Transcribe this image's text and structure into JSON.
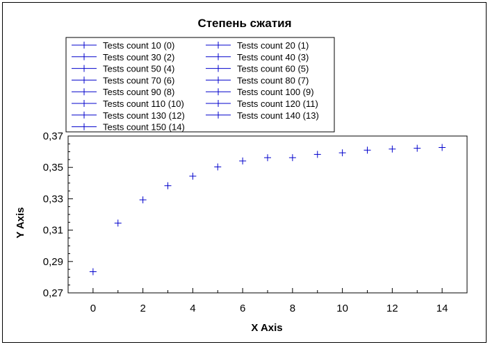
{
  "chart_data": {
    "type": "scatter",
    "title": "Степень сжатия",
    "xlabel": "X Axis",
    "ylabel": "Y Axis",
    "xlim": [
      -1,
      15
    ],
    "ylim": [
      0.27,
      0.37
    ],
    "x_ticks": [
      0,
      2,
      4,
      6,
      8,
      10,
      12,
      14
    ],
    "x_tick_labels": [
      "0",
      "2",
      "4",
      "6",
      "8",
      "10",
      "12",
      "14"
    ],
    "y_ticks": [
      0.27,
      0.29,
      0.31,
      0.33,
      0.35,
      0.37
    ],
    "y_tick_labels": [
      "0,27",
      "0,29",
      "0,31",
      "0,33",
      "0,35",
      "0,37"
    ],
    "marker_color": "#0000cc",
    "legend_position": "top",
    "series": [
      {
        "name": "Tests count 10 (0)",
        "x": [
          0
        ],
        "y": [
          0.2835
        ]
      },
      {
        "name": "Tests count 20 (1)",
        "x": [
          1
        ],
        "y": [
          0.3145
        ]
      },
      {
        "name": "Tests count 30 (2)",
        "x": [
          2
        ],
        "y": [
          0.3293
        ]
      },
      {
        "name": "Tests count 40 (3)",
        "x": [
          3
        ],
        "y": [
          0.3383
        ]
      },
      {
        "name": "Tests count 50 (4)",
        "x": [
          4
        ],
        "y": [
          0.3444
        ]
      },
      {
        "name": "Tests count 60 (5)",
        "x": [
          5
        ],
        "y": [
          0.3503
        ]
      },
      {
        "name": "Tests count 70 (6)",
        "x": [
          6
        ],
        "y": [
          0.3541
        ]
      },
      {
        "name": "Tests count 80 (7)",
        "x": [
          7
        ],
        "y": [
          0.3562
        ]
      },
      {
        "name": "Tests count 90 (8)",
        "x": [
          8
        ],
        "y": [
          0.3562
        ]
      },
      {
        "name": "Tests count 100 (9)",
        "x": [
          9
        ],
        "y": [
          0.3583
        ]
      },
      {
        "name": "Tests count 110 (10)",
        "x": [
          10
        ],
        "y": [
          0.3593
        ]
      },
      {
        "name": "Tests count 120 (11)",
        "x": [
          11
        ],
        "y": [
          0.361
        ]
      },
      {
        "name": "Tests count 130 (12)",
        "x": [
          12
        ],
        "y": [
          0.3617
        ]
      },
      {
        "name": "Tests count 140 (13)",
        "x": [
          13
        ],
        "y": [
          0.3622
        ]
      },
      {
        "name": "Tests count 150 (14)",
        "x": [
          14
        ],
        "y": [
          0.3627
        ]
      }
    ]
  }
}
